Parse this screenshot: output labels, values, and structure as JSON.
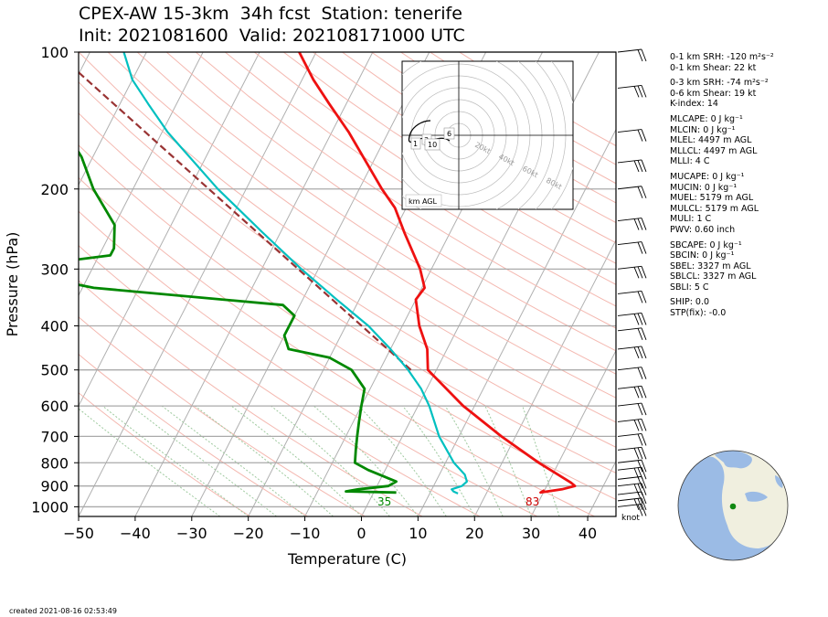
{
  "header": {
    "title_line1": "CPEX-AW 15-3km  34h fcst  Station: tenerife",
    "title_line2": "Init: 2021081600  Valid: 202108171000 UTC"
  },
  "footer": {
    "created": "created 2021-08-16 02:53:49"
  },
  "stats": [
    "0-1 km SRH: -120 m²s⁻²",
    "0-1 km Shear: 22 kt",
    "0-3 km SRH: -74 m²s⁻²",
    "0-6 km Shear: 19 kt",
    "K-index: 14",
    "MLCAPE: 0 J kg⁻¹",
    "MLCIN: 0 J kg⁻¹",
    "MLEL: 4497 m AGL",
    "MLLCL: 4497 m AGL",
    "MLLI: 4 C",
    "MUCAPE: 0 J kg⁻¹",
    "MUCIN: 0 J kg⁻¹",
    "MUEL: 5179 m AGL",
    "MULCL: 5179 m AGL",
    "MULI: 1 C",
    "PWV: 0.60 inch",
    "SBCAPE: 0 J kg⁻¹",
    "SBCIN: 0 J kg⁻¹",
    "SBEL: 3327 m AGL",
    "SBLCL: 3327 m AGL",
    "SBLI: 5 C",
    "SHIP: 0.0",
    "STP(fix): -0.0"
  ],
  "chart_data": {
    "type": "line",
    "xlabel": "Temperature (C)",
    "ylabel": "Pressure (hPa)",
    "xlim": [
      -50,
      45
    ],
    "ylim": [
      1050,
      100
    ],
    "y_scale": "log",
    "x_ticks": [
      -50,
      -40,
      -30,
      -20,
      -10,
      0,
      10,
      20,
      30,
      40
    ],
    "y_ticks": [
      100,
      200,
      300,
      400,
      500,
      600,
      700,
      800,
      900,
      1000
    ],
    "colors": {
      "temperature": "#ee1111",
      "dewpoint": "#008800",
      "parcel": "#00c0c0",
      "parcel_path": "#993333",
      "dry_adiabat": "#f4b8b0",
      "moist_adiabat": "#9ec99e",
      "isotherm": "#b0b0b0"
    },
    "temperature": [
      [
        920,
        30
      ],
      [
        930,
        29.5
      ],
      [
        915,
        33
      ],
      [
        900,
        35
      ],
      [
        885,
        34
      ],
      [
        850,
        31
      ],
      [
        800,
        26.5
      ],
      [
        700,
        17.5
      ],
      [
        600,
        8
      ],
      [
        500,
        -1.5
      ],
      [
        450,
        -3.5
      ],
      [
        400,
        -7
      ],
      [
        350,
        -10
      ],
      [
        330,
        -9.5
      ],
      [
        300,
        -12
      ],
      [
        250,
        -18
      ],
      [
        220,
        -22
      ],
      [
        200,
        -26
      ],
      [
        150,
        -37
      ],
      [
        130,
        -43
      ],
      [
        115,
        -48
      ],
      [
        100,
        -53
      ]
    ],
    "dewpoint": [
      [
        930,
        4
      ],
      [
        925,
        -5
      ],
      [
        915,
        -3
      ],
      [
        900,
        2
      ],
      [
        880,
        3
      ],
      [
        830,
        -3
      ],
      [
        800,
        -6
      ],
      [
        750,
        -7
      ],
      [
        700,
        -8
      ],
      [
        650,
        -9
      ],
      [
        600,
        -10
      ],
      [
        550,
        -11
      ],
      [
        500,
        -15
      ],
      [
        470,
        -20
      ],
      [
        450,
        -28
      ],
      [
        420,
        -30
      ],
      [
        400,
        -30
      ],
      [
        380,
        -30
      ],
      [
        360,
        -33
      ],
      [
        330,
        -68
      ],
      [
        300,
        -86
      ],
      [
        280,
        -68
      ],
      [
        270,
        -68
      ],
      [
        240,
        -70
      ],
      [
        200,
        -77
      ],
      [
        170,
        -82
      ],
      [
        150,
        -87
      ],
      [
        130,
        -90
      ],
      [
        115,
        -92
      ],
      [
        100,
        -93
      ]
    ],
    "parcel_trace": [
      [
        935,
        15
      ],
      [
        925,
        14
      ],
      [
        915,
        13.5
      ],
      [
        900,
        15
      ],
      [
        880,
        15.5
      ],
      [
        850,
        14.5
      ],
      [
        800,
        11.5
      ],
      [
        700,
        6.5
      ],
      [
        600,
        2
      ],
      [
        550,
        -1
      ],
      [
        500,
        -5
      ],
      [
        450,
        -10
      ],
      [
        400,
        -16
      ],
      [
        350,
        -24
      ],
      [
        300,
        -33
      ],
      [
        250,
        -43
      ],
      [
        200,
        -55
      ],
      [
        150,
        -69
      ],
      [
        130,
        -75
      ],
      [
        115,
        -80
      ],
      [
        100,
        -84
      ]
    ],
    "parcel_path": [
      [
        500,
        -4.5
      ],
      [
        100,
        -96
      ]
    ],
    "surface_labels": [
      {
        "text": "35",
        "color": "#008800"
      },
      {
        "text": "83",
        "color": "#cc0000"
      }
    ],
    "wind_barbs_pressure": [
      100,
      120,
      150,
      175,
      200,
      235,
      265,
      300,
      340,
      380,
      410,
      450,
      500,
      550,
      600,
      650,
      700,
      750,
      800,
      830,
      870,
      900,
      940,
      970,
      1000
    ],
    "wind_unit_label": "knot",
    "hodograph": {
      "ring_labels": [
        "20kt",
        "40kt",
        "60kt",
        "80kt"
      ],
      "height_labels": [
        "1",
        "3",
        "6",
        "10"
      ],
      "corner_label": "km AGL"
    }
  }
}
